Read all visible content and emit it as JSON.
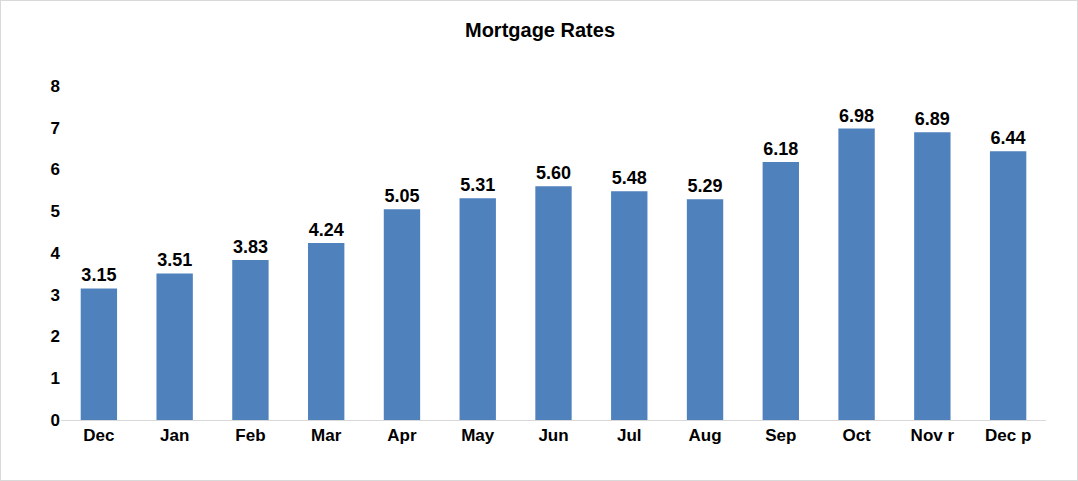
{
  "chart_data": {
    "type": "bar",
    "title": "Mortgage Rates",
    "categories": [
      "Dec",
      "Jan",
      "Feb",
      "Mar",
      "Apr",
      "May",
      "Jun",
      "Jul",
      "Aug",
      "Sep",
      "Oct",
      "Nov r",
      "Dec p"
    ],
    "values": [
      3.15,
      3.51,
      3.83,
      4.24,
      5.05,
      5.31,
      5.6,
      5.48,
      5.29,
      6.18,
      6.98,
      6.89,
      6.44
    ],
    "value_labels": [
      "3.15",
      "3.51",
      "3.83",
      "4.24",
      "5.05",
      "5.31",
      "5.60",
      "5.48",
      "5.29",
      "6.18",
      "6.98",
      "6.89",
      "6.44"
    ],
    "color": "#4f81bd",
    "ylim": [
      0,
      8
    ],
    "yticks": [
      0,
      1,
      2,
      3,
      4,
      5,
      6,
      7,
      8
    ],
    "grid": false,
    "data_labels": true
  }
}
